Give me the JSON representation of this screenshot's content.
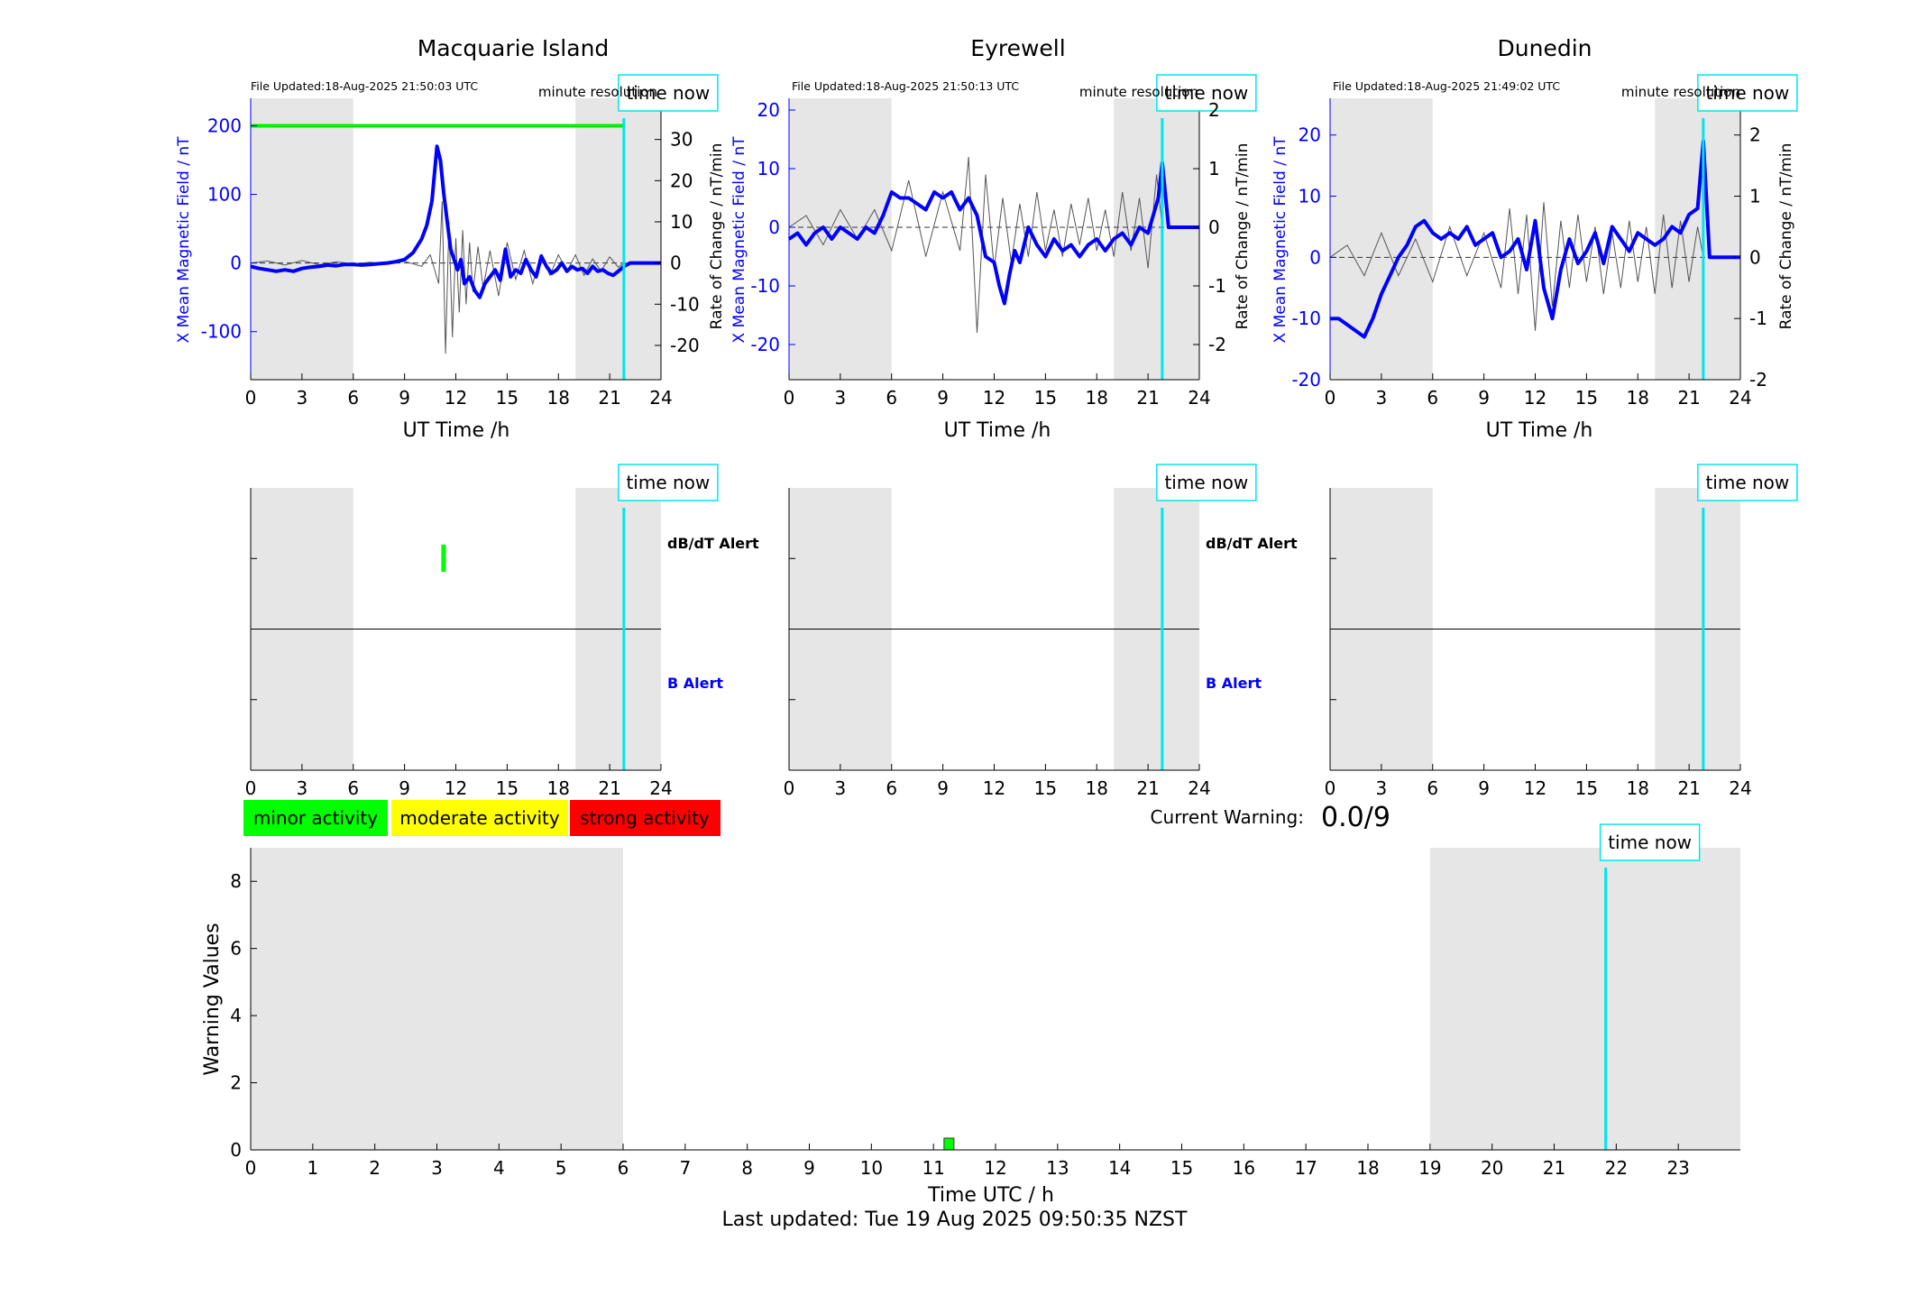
{
  "colors": {
    "background": "#ffffff",
    "shade": "#e6e6e6",
    "field_line": "#0000ff",
    "rate_line": "#555555",
    "threshold": "#00ee00",
    "time_now": "#00e5ee",
    "minor": "#00ff00",
    "moderate": "#ffff00",
    "strong": "#ff0000",
    "axis": "#000000"
  },
  "common": {
    "time_now_label": "time now",
    "minute_resolution": "minute resolution",
    "xlabel_top": "UT Time /h",
    "ylabel_left": "X Mean Magnetic Field / nT",
    "ylabel_right": "Rate of Change / nT/min",
    "dbdt_alert": "dB/dT Alert",
    "b_alert": "B Alert"
  },
  "legend": {
    "minor": "minor activity",
    "moderate": "moderate activity",
    "strong": "strong activity"
  },
  "current_warning": {
    "label": "Current Warning:",
    "value": "0.0/9"
  },
  "footer": {
    "last_updated": "Last updated: Tue 19 Aug 2025 09:50:35 NZST"
  },
  "chart_data": [
    {
      "type": "line",
      "title": "Macquarie Island",
      "file_updated": "File Updated:18-Aug-2025 21:50:03 UTC",
      "xlabel": "UT Time /h",
      "ylabel": "X Mean Magnetic Field / nT",
      "ylabel_right": "Rate of Change / nT/min",
      "xlim": [
        0,
        24
      ],
      "ylim": [
        -170,
        240
      ],
      "ylim_right": [
        -28.33,
        40
      ],
      "xticks": [
        0,
        3,
        6,
        9,
        12,
        15,
        18,
        21,
        24
      ],
      "yticks": [
        -100,
        0,
        100,
        200
      ],
      "yticks_right": [
        -20,
        -10,
        0,
        10,
        20,
        30
      ],
      "shaded_ranges": [
        [
          0,
          6
        ],
        [
          19,
          24
        ]
      ],
      "time_now": 21.83,
      "threshold": 200,
      "series": [
        {
          "role": "field",
          "x": [
            0,
            0.5,
            1,
            1.5,
            2,
            2.5,
            3,
            3.5,
            4,
            4.5,
            5,
            5.5,
            6,
            6.5,
            7,
            7.5,
            8,
            8.5,
            9,
            9.5,
            10,
            10.3,
            10.6,
            10.9,
            11.1,
            11.3,
            11.5,
            11.7,
            11.9,
            12.1,
            12.3,
            12.5,
            12.8,
            13.1,
            13.4,
            13.7,
            14,
            14.3,
            14.6,
            14.9,
            15.2,
            15.5,
            15.8,
            16.1,
            16.4,
            16.7,
            17,
            17.3,
            17.6,
            17.9,
            18.2,
            18.5,
            18.8,
            19.1,
            19.4,
            19.7,
            20,
            20.3,
            20.6,
            20.9,
            21.2,
            21.5,
            21.83,
            22.2,
            24
          ],
          "y": [
            -5,
            -8,
            -10,
            -12,
            -10,
            -12,
            -8,
            -6,
            -5,
            -3,
            -4,
            -2,
            -2,
            -3,
            -2,
            -1,
            0,
            2,
            5,
            15,
            35,
            55,
            90,
            170,
            150,
            100,
            60,
            20,
            5,
            -10,
            5,
            -30,
            -20,
            -40,
            -50,
            -30,
            -20,
            -10,
            -25,
            20,
            -20,
            -10,
            -15,
            5,
            -10,
            -20,
            10,
            -5,
            -15,
            -10,
            0,
            -12,
            -5,
            -10,
            -8,
            -15,
            -5,
            -12,
            -10,
            -15,
            -18,
            -12,
            -5,
            0,
            0
          ]
        },
        {
          "role": "rate",
          "x": [
            0,
            1,
            2,
            3,
            4,
            5,
            6,
            7,
            8,
            9,
            10,
            10.5,
            11,
            11.2,
            11.4,
            11.6,
            11.8,
            12,
            12.2,
            12.4,
            12.6,
            12.8,
            13,
            13.3,
            13.6,
            14,
            14.5,
            15,
            15.5,
            16,
            16.5,
            17,
            17.5,
            18,
            18.5,
            19,
            19.5,
            20,
            20.5,
            21,
            21.5,
            21.83
          ],
          "y": [
            0,
            0.5,
            -0.5,
            0.6,
            -0.4,
            0.3,
            -0.2,
            0.2,
            -0.3,
            0.4,
            -0.8,
            2,
            -5,
            15,
            -22,
            10,
            -18,
            6,
            -12,
            8,
            -10,
            5,
            -7,
            4,
            -6,
            3,
            -8,
            5,
            -4,
            3,
            -5,
            2,
            -3,
            2,
            -2,
            2,
            -3,
            1,
            -2,
            1.5,
            -1,
            0
          ]
        }
      ]
    },
    {
      "type": "line",
      "title": "Eyrewell",
      "file_updated": "File Updated:18-Aug-2025 21:50:13 UTC",
      "xlabel": "UT Time /h",
      "ylabel": "X Mean Magnetic Field / nT",
      "ylabel_right": "Rate of Change / nT/min",
      "xlim": [
        0,
        24
      ],
      "ylim": [
        -26,
        22
      ],
      "ylim_right": [
        -2.6,
        2.2
      ],
      "xticks": [
        0,
        3,
        6,
        9,
        12,
        15,
        18,
        21,
        24
      ],
      "yticks": [
        -20,
        -10,
        0,
        10,
        20
      ],
      "yticks_right": [
        -2,
        -1,
        0,
        1,
        2
      ],
      "shaded_ranges": [
        [
          0,
          6
        ],
        [
          19,
          24
        ]
      ],
      "time_now": 21.83,
      "series": [
        {
          "role": "field",
          "x": [
            0,
            0.5,
            1,
            1.5,
            2,
            2.5,
            3,
            3.5,
            4,
            4.5,
            5,
            5.5,
            6,
            6.5,
            7,
            7.5,
            8,
            8.5,
            9,
            9.5,
            10,
            10.5,
            11,
            11.5,
            12,
            12.3,
            12.6,
            12.9,
            13.2,
            13.5,
            14,
            14.5,
            15,
            15.5,
            16,
            16.5,
            17,
            17.5,
            18,
            18.5,
            19,
            19.5,
            20,
            20.5,
            21,
            21.3,
            21.6,
            21.83,
            22.2,
            24
          ],
          "y": [
            -2,
            -1,
            -3,
            -1,
            0,
            -2,
            0,
            -1,
            -2,
            0,
            -1,
            2,
            6,
            5,
            5,
            4,
            3,
            6,
            5,
            6,
            3,
            5,
            2,
            -5,
            -6,
            -10,
            -13,
            -8,
            -4,
            -6,
            0,
            -3,
            -5,
            -2,
            -4,
            -3,
            -5,
            -3,
            -2,
            -4,
            -2,
            -1,
            -3,
            0,
            -1,
            2,
            5,
            11,
            0,
            0
          ]
        },
        {
          "role": "rate",
          "x": [
            0,
            1,
            2,
            3,
            4,
            5,
            6,
            7,
            8,
            9,
            10,
            10.5,
            11,
            11.5,
            12,
            12.5,
            13,
            13.5,
            14,
            14.5,
            15,
            15.5,
            16,
            16.5,
            17,
            17.5,
            18,
            18.5,
            19,
            19.5,
            20,
            20.5,
            21,
            21.5,
            21.83
          ],
          "y": [
            0,
            0.2,
            -0.3,
            0.3,
            -0.2,
            0.3,
            -0.4,
            0.8,
            -0.5,
            0.6,
            -0.4,
            1.2,
            -1.8,
            0.9,
            -0.7,
            0.5,
            -0.6,
            0.4,
            -0.5,
            0.6,
            -0.4,
            0.3,
            -0.5,
            0.4,
            -0.3,
            0.5,
            -0.4,
            0.3,
            -0.5,
            0.6,
            -0.4,
            0.5,
            -0.7,
            0.9,
            0
          ]
        }
      ]
    },
    {
      "type": "line",
      "title": "Dunedin",
      "file_updated": "File Updated:18-Aug-2025 21:49:02 UTC",
      "xlabel": "UT Time /h",
      "ylabel": "X Mean Magnetic Field / nT",
      "ylabel_right": "Rate of Change / nT/min",
      "xlim": [
        0,
        24
      ],
      "ylim": [
        -20,
        26
      ],
      "ylim_right": [
        -2,
        2.6
      ],
      "xticks": [
        0,
        3,
        6,
        9,
        12,
        15,
        18,
        21,
        24
      ],
      "yticks": [
        -20,
        -10,
        0,
        10,
        20
      ],
      "yticks_right": [
        -2,
        -1,
        0,
        1,
        2
      ],
      "shaded_ranges": [
        [
          0,
          6
        ],
        [
          19,
          24
        ]
      ],
      "time_now": 21.83,
      "series": [
        {
          "role": "field",
          "x": [
            0,
            0.5,
            1,
            1.5,
            2,
            2.5,
            3,
            3.5,
            4,
            4.5,
            5,
            5.5,
            6,
            6.5,
            7,
            7.5,
            8,
            8.5,
            9,
            9.5,
            10,
            10.5,
            11,
            11.5,
            12,
            12.5,
            13,
            13.5,
            14,
            14.5,
            15,
            15.5,
            16,
            16.5,
            17,
            17.5,
            18,
            18.5,
            19,
            19.5,
            20,
            20.5,
            21,
            21.5,
            21.83,
            22.2,
            24
          ],
          "y": [
            -10,
            -10,
            -11,
            -12,
            -13,
            -10,
            -6,
            -3,
            0,
            2,
            5,
            6,
            4,
            3,
            4,
            3,
            5,
            2,
            3,
            4,
            0,
            1,
            3,
            -2,
            6,
            -5,
            -10,
            -2,
            3,
            -1,
            1,
            4,
            -1,
            5,
            3,
            1,
            4,
            3,
            2,
            3,
            5,
            4,
            7,
            8,
            19,
            0,
            0
          ]
        },
        {
          "role": "rate",
          "x": [
            0,
            1,
            2,
            3,
            4,
            5,
            6,
            7,
            8,
            9,
            10,
            10.5,
            11,
            11.5,
            12,
            12.5,
            13,
            13.5,
            14,
            14.5,
            15,
            15.5,
            16,
            16.5,
            17,
            17.5,
            18,
            18.5,
            19,
            19.5,
            20,
            20.5,
            21,
            21.5,
            21.83
          ],
          "y": [
            0,
            0.2,
            -0.3,
            0.4,
            -0.3,
            0.3,
            -0.4,
            0.5,
            -0.3,
            0.4,
            -0.5,
            0.8,
            -0.6,
            0.7,
            -1.2,
            0.9,
            -0.8,
            0.6,
            -0.5,
            0.7,
            -0.4,
            0.5,
            -0.6,
            0.4,
            -0.5,
            0.6,
            -0.4,
            0.5,
            -0.6,
            0.7,
            -0.5,
            0.6,
            -0.4,
            0.5,
            0
          ]
        }
      ]
    },
    {
      "type": "bar",
      "panel": "alert-macquarie",
      "xlim": [
        0,
        24
      ],
      "xticks": [
        0,
        3,
        6,
        9,
        12,
        15,
        18,
        21,
        24
      ],
      "shaded_ranges": [
        [
          0,
          6
        ],
        [
          19,
          24
        ]
      ],
      "time_now": 21.83,
      "rows": [
        "dB/dT Alert",
        "B Alert"
      ],
      "events": [
        {
          "row": "dB/dT Alert",
          "x_start": 11.15,
          "x_end": 11.25,
          "level": "minor"
        }
      ]
    },
    {
      "type": "bar",
      "panel": "alert-eyrewell",
      "xlim": [
        0,
        24
      ],
      "xticks": [
        0,
        3,
        6,
        9,
        12,
        15,
        18,
        21,
        24
      ],
      "shaded_ranges": [
        [
          0,
          6
        ],
        [
          19,
          24
        ]
      ],
      "time_now": 21.83,
      "rows": [
        "dB/dT Alert",
        "B Alert"
      ],
      "events": []
    },
    {
      "type": "bar",
      "panel": "alert-dunedin",
      "xlim": [
        0,
        24
      ],
      "xticks": [
        0,
        3,
        6,
        9,
        12,
        15,
        18,
        21,
        24
      ],
      "shaded_ranges": [
        [
          0,
          6
        ],
        [
          19,
          24
        ]
      ],
      "time_now": 21.83,
      "rows": [
        "dB/dT Alert",
        "B Alert"
      ],
      "events": []
    },
    {
      "type": "bar",
      "panel": "warning-values",
      "xlabel": "Time UTC / h",
      "ylabel": "Warning Values",
      "xlim": [
        0,
        24
      ],
      "ylim": [
        0,
        9
      ],
      "xticks": [
        0,
        1,
        2,
        3,
        4,
        5,
        6,
        7,
        8,
        9,
        10,
        11,
        12,
        13,
        14,
        15,
        16,
        17,
        18,
        19,
        20,
        21,
        22,
        23
      ],
      "yticks": [
        0,
        2,
        4,
        6,
        8
      ],
      "shaded_ranges": [
        [
          0,
          6
        ],
        [
          19,
          24
        ]
      ],
      "time_now": 21.83,
      "bars": [
        {
          "x_start": 11.17,
          "x_end": 11.33,
          "value": 0.35,
          "level": "minor"
        }
      ]
    }
  ]
}
